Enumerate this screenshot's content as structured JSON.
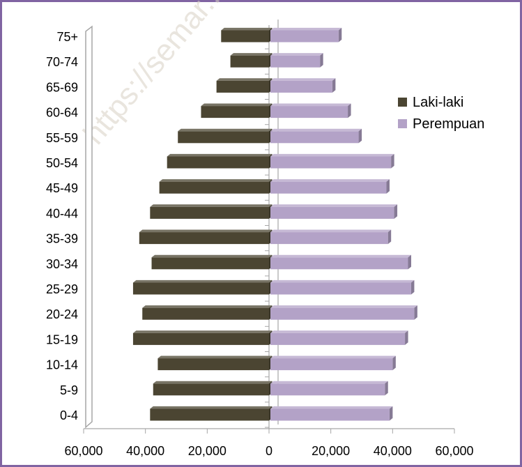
{
  "watermark": "https://semar...",
  "chart_data": {
    "type": "bar",
    "orientation": "horizontal",
    "style": "population-pyramid-3d",
    "categories": [
      "0-4",
      "5-9",
      "10-14",
      "15-19",
      "20-24",
      "25-29",
      "30-34",
      "35-39",
      "40-44",
      "45-49",
      "50-54",
      "55-59",
      "60-64",
      "65-69",
      "70-74",
      "75+"
    ],
    "series": [
      {
        "name": "Laki-laki",
        "color": "#4b4532",
        "direction": "left",
        "values": [
          38500,
          37500,
          36000,
          44000,
          41000,
          44000,
          38000,
          42000,
          38500,
          35500,
          33000,
          29500,
          22000,
          17000,
          12500,
          15500
        ]
      },
      {
        "name": "Perempuan",
        "color": "#b3a2c7",
        "direction": "right",
        "values": [
          39000,
          37500,
          40000,
          44000,
          47000,
          46000,
          45000,
          38500,
          40500,
          38000,
          39500,
          29000,
          25500,
          20500,
          16500,
          22500
        ]
      }
    ],
    "x_ticks": [
      "60,000",
      "40,000",
      "20,000",
      "0",
      "20,000",
      "40,000",
      "60,000"
    ],
    "xlim": [
      -60000,
      60000
    ],
    "legend_position": "right",
    "grid": false,
    "title": "",
    "xlabel": "",
    "ylabel": ""
  }
}
